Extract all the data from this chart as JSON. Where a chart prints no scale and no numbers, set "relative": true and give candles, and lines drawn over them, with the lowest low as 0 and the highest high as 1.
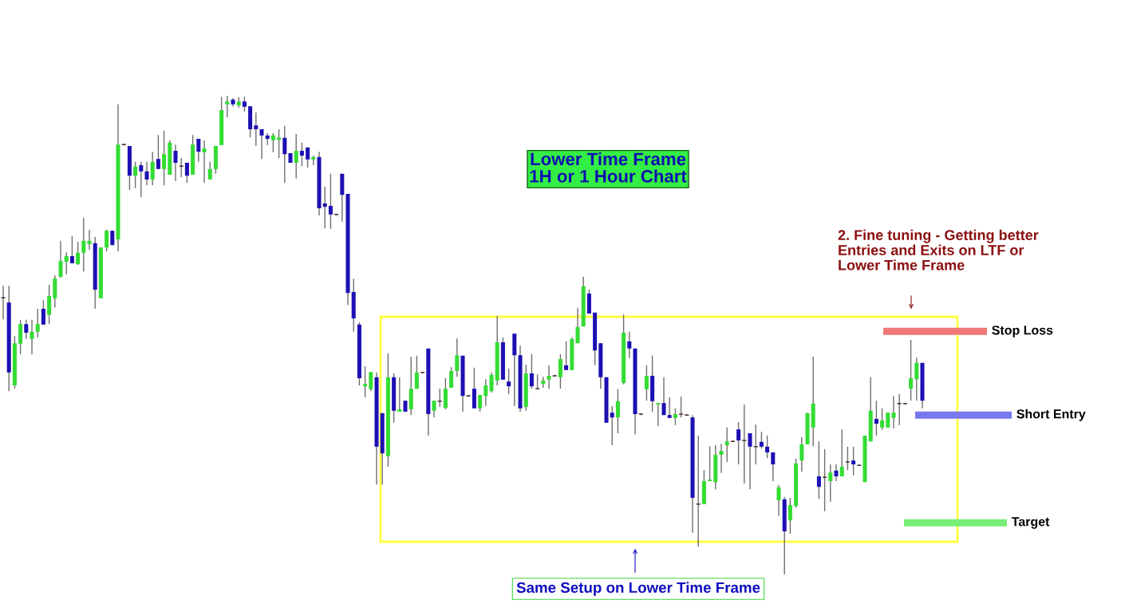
{
  "chart_data": {
    "type": "candlestick",
    "title": "Lower Time Frame\n1H or 1 Hour Chart",
    "relative": true,
    "categories": [
      null,
      null,
      null,
      null,
      null,
      null,
      null,
      null,
      null,
      null,
      null,
      null,
      null,
      null,
      null,
      null,
      null,
      null,
      null,
      null,
      null,
      null,
      null,
      null,
      null,
      null,
      null,
      null,
      null,
      null,
      null,
      null,
      null,
      null,
      null,
      null,
      null,
      null,
      null,
      null,
      null,
      null,
      null,
      null,
      null,
      null,
      null,
      null,
      null,
      null,
      null,
      null,
      null,
      null,
      null,
      null,
      null,
      null,
      null,
      null,
      null,
      null,
      null,
      null,
      null,
      null,
      null,
      null,
      null,
      null,
      null,
      null,
      null,
      null,
      null,
      null,
      null,
      null,
      null,
      null,
      null,
      null,
      null,
      null,
      null,
      null,
      null,
      null,
      null,
      null,
      null,
      null,
      null,
      null,
      null,
      null,
      null,
      null,
      null,
      null,
      null,
      null,
      null,
      null,
      null,
      null,
      null,
      null,
      null,
      null,
      null,
      null,
      null,
      null,
      null,
      null,
      null,
      null,
      null,
      null,
      null,
      null,
      null,
      null,
      null,
      null,
      null,
      null,
      null,
      null,
      null,
      null,
      null,
      null,
      null,
      null,
      null,
      null,
      null,
      null,
      null,
      null,
      null,
      null,
      null,
      null,
      null,
      null,
      null,
      null,
      null,
      null,
      null,
      null,
      null,
      null,
      null,
      null,
      null,
      null,
      null
    ],
    "ohlc": [
      [
        0.578,
        0.603,
        0.533,
        0.578
      ],
      [
        0.568,
        0.603,
        0.383,
        0.422
      ],
      [
        0.395,
        0.498,
        0.388,
        0.483
      ],
      [
        0.482,
        0.532,
        0.46,
        0.523
      ],
      [
        0.523,
        0.532,
        0.492,
        0.505
      ],
      [
        0.492,
        0.532,
        0.46,
        0.507
      ],
      [
        0.507,
        0.555,
        0.495,
        0.523
      ],
      [
        0.555,
        0.573,
        0.522,
        0.522
      ],
      [
        0.542,
        0.605,
        0.523,
        0.582
      ],
      [
        0.577,
        0.625,
        0.558,
        0.618
      ],
      [
        0.622,
        0.697,
        0.62,
        0.655
      ],
      [
        0.653,
        0.673,
        0.627,
        0.665
      ],
      [
        0.665,
        0.707,
        0.65,
        0.65
      ],
      [
        0.648,
        0.695,
        0.647,
        0.672
      ],
      [
        0.672,
        0.745,
        0.633,
        0.697
      ],
      [
        0.69,
        0.72,
        0.678,
        0.697
      ],
      [
        0.692,
        0.705,
        0.555,
        0.595
      ],
      [
        0.577,
        0.683,
        0.577,
        0.683
      ],
      [
        0.683,
        0.72,
        0.675,
        0.718
      ],
      [
        0.718,
        0.718,
        0.688,
        0.688
      ],
      [
        0.7,
        0.982,
        0.675,
        0.898
      ],
      [
        0.898,
        0.9,
        0.897,
        0.898
      ],
      [
        0.895,
        0.895,
        0.803,
        0.833
      ],
      [
        0.833,
        0.862,
        0.807,
        0.852
      ],
      [
        0.855,
        0.862,
        0.788,
        0.842
      ],
      [
        0.842,
        0.862,
        0.813,
        0.825
      ],
      [
        0.825,
        0.883,
        0.813,
        0.862
      ],
      [
        0.868,
        0.918,
        0.847,
        0.847
      ],
      [
        0.847,
        0.927,
        0.813,
        0.878
      ],
      [
        0.835,
        0.907,
        0.835,
        0.902
      ],
      [
        0.885,
        0.898,
        0.822,
        0.86
      ],
      [
        0.853,
        0.87,
        0.83,
        0.853
      ],
      [
        0.86,
        0.86,
        0.818,
        0.833
      ],
      [
        0.835,
        0.918,
        0.835,
        0.898
      ],
      [
        0.91,
        0.91,
        0.862,
        0.883
      ],
      [
        0.882,
        0.907,
        0.818,
        0.89
      ],
      [
        0.825,
        0.862,
        0.825,
        0.847
      ],
      [
        0.847,
        0.895,
        0.837,
        0.895
      ],
      [
        0.897,
        0.998,
        0.897,
        0.97
      ],
      [
        0.982,
        1.0,
        0.955,
        0.988
      ],
      [
        0.992,
        0.995,
        0.977,
        0.982
      ],
      [
        0.98,
        0.997,
        0.975,
        0.988
      ],
      [
        0.988,
        0.998,
        0.967,
        0.977
      ],
      [
        0.978,
        0.978,
        0.913,
        0.93
      ],
      [
        0.938,
        0.965,
        0.895,
        0.93
      ],
      [
        0.93,
        0.93,
        0.868,
        0.917
      ],
      [
        0.917,
        0.922,
        0.897,
        0.91
      ],
      [
        0.907,
        0.922,
        0.882,
        0.917
      ],
      [
        0.908,
        0.93,
        0.87,
        0.913
      ],
      [
        0.912,
        0.937,
        0.818,
        0.878
      ],
      [
        0.88,
        0.88,
        0.86,
        0.86
      ],
      [
        0.86,
        0.92,
        0.827,
        0.885
      ],
      [
        0.885,
        0.902,
        0.853,
        0.875
      ],
      [
        0.892,
        0.892,
        0.85,
        0.867
      ],
      [
        0.867,
        0.875,
        0.855,
        0.872
      ],
      [
        0.872,
        0.883,
        0.75,
        0.765
      ],
      [
        0.775,
        0.81,
        0.723,
        0.768
      ],
      [
        0.77,
        0.837,
        0.722,
        0.752
      ],
      [
        0.752,
        0.753,
        0.75,
        0.752
      ],
      [
        0.837,
        0.837,
        0.737,
        0.793
      ],
      [
        0.795,
        0.795,
        0.563,
        0.588
      ],
      [
        0.59,
        0.618,
        0.507,
        0.535
      ],
      [
        0.522,
        0.527,
        0.395,
        0.41
      ],
      [
        0.393,
        0.435,
        0.37,
        0.398
      ],
      [
        0.387,
        0.423,
        0.383,
        0.423
      ],
      [
        0.412,
        0.422,
        0.188,
        0.267
      ],
      [
        0.337,
        0.337,
        0.188,
        0.253
      ],
      [
        0.247,
        0.462,
        0.225,
        0.412
      ],
      [
        0.412,
        0.42,
        0.317,
        0.342
      ],
      [
        0.34,
        0.412,
        0.34,
        0.345
      ],
      [
        0.363,
        0.363,
        0.34,
        0.34
      ],
      [
        0.345,
        0.455,
        0.333,
        0.388
      ],
      [
        0.388,
        0.457,
        0.388,
        0.422
      ],
      [
        0.422,
        0.423,
        0.42,
        0.422
      ],
      [
        0.472,
        0.472,
        0.29,
        0.335
      ],
      [
        0.342,
        0.363,
        0.328,
        0.363
      ],
      [
        0.362,
        0.388,
        0.35,
        0.362
      ],
      [
        0.348,
        0.41,
        0.345,
        0.388
      ],
      [
        0.39,
        0.433,
        0.39,
        0.425
      ],
      [
        0.425,
        0.493,
        0.413,
        0.458
      ],
      [
        0.457,
        0.457,
        0.34,
        0.373
      ],
      [
        0.373,
        0.375,
        0.372,
        0.373
      ],
      [
        0.388,
        0.432,
        0.347,
        0.347
      ],
      [
        0.347,
        0.375,
        0.34,
        0.375
      ],
      [
        0.373,
        0.408,
        0.352,
        0.395
      ],
      [
        0.383,
        0.422,
        0.38,
        0.417
      ],
      [
        0.405,
        0.54,
        0.395,
        0.485
      ],
      [
        0.485,
        0.495,
        0.407,
        0.407
      ],
      [
        0.403,
        0.43,
        0.377,
        0.393
      ],
      [
        0.503,
        0.503,
        0.352,
        0.458
      ],
      [
        0.458,
        0.478,
        0.34,
        0.347
      ],
      [
        0.35,
        0.438,
        0.342,
        0.42
      ],
      [
        0.42,
        0.46,
        0.388,
        0.393
      ],
      [
        0.388,
        0.418,
        0.387,
        0.388
      ],
      [
        0.398,
        0.413,
        0.39,
        0.405
      ],
      [
        0.407,
        0.437,
        0.388,
        0.415
      ],
      [
        0.415,
        0.417,
        0.413,
        0.415
      ],
      [
        0.412,
        0.46,
        0.388,
        0.45
      ],
      [
        0.437,
        0.487,
        0.427,
        0.427
      ],
      [
        0.427,
        0.495,
        0.427,
        0.492
      ],
      [
        0.483,
        0.557,
        0.483,
        0.517
      ],
      [
        0.518,
        0.622,
        0.518,
        0.602
      ],
      [
        0.587,
        0.595,
        0.545,
        0.545
      ],
      [
        0.547,
        0.547,
        0.437,
        0.468
      ],
      [
        0.483,
        0.483,
        0.388,
        0.412
      ],
      [
        0.412,
        0.412,
        0.317,
        0.317
      ],
      [
        0.338,
        0.352,
        0.27,
        0.328
      ],
      [
        0.328,
        0.387,
        0.295,
        0.362
      ],
      [
        0.4,
        0.543,
        0.397,
        0.505
      ],
      [
        0.487,
        0.507,
        0.452,
        0.472
      ],
      [
        0.472,
        0.472,
        0.293,
        0.335
      ],
      [
        0.335,
        0.337,
        0.333,
        0.335
      ],
      [
        0.387,
        0.437,
        0.363,
        0.415
      ],
      [
        0.415,
        0.457,
        0.34,
        0.362
      ],
      [
        0.355,
        0.358,
        0.31,
        0.358
      ],
      [
        0.358,
        0.412,
        0.333,
        0.333
      ],
      [
        0.333,
        0.37,
        0.327,
        0.327
      ],
      [
        0.327,
        0.347,
        0.312,
        0.335
      ],
      [
        0.335,
        0.372,
        0.328,
        0.335
      ],
      [
        0.333,
        0.335,
        0.332,
        0.333
      ],
      [
        0.328,
        0.333,
        0.087,
        0.16
      ],
      [
        0.147,
        0.29,
        0.058,
        0.147
      ],
      [
        0.147,
        0.218,
        0.147,
        0.195
      ],
      [
        0.195,
        0.268,
        0.195,
        0.198
      ],
      [
        0.193,
        0.27,
        0.178,
        0.25
      ],
      [
        0.25,
        0.273,
        0.212,
        0.258
      ],
      [
        0.27,
        0.307,
        0.235,
        0.278
      ],
      [
        0.278,
        0.28,
        0.277,
        0.278
      ],
      [
        0.303,
        0.318,
        0.23,
        0.28
      ],
      [
        0.28,
        0.355,
        0.19,
        0.28
      ],
      [
        0.295,
        0.295,
        0.178,
        0.267
      ],
      [
        0.267,
        0.313,
        0.23,
        0.267
      ],
      [
        0.277,
        0.298,
        0.263,
        0.267
      ],
      [
        0.267,
        0.29,
        0.243,
        0.255
      ],
      [
        0.255,
        0.255,
        0.195,
        0.23
      ],
      [
        0.155,
        0.187,
        0.122,
        0.182
      ],
      [
        0.157,
        0.162,
        0.0,
        0.09
      ],
      [
        0.113,
        0.16,
        0.085,
        0.145
      ],
      [
        0.143,
        0.242,
        0.14,
        0.232
      ],
      [
        0.238,
        0.287,
        0.215,
        0.272
      ],
      [
        0.272,
        0.338,
        0.272,
        0.337
      ],
      [
        0.307,
        0.455,
        0.268,
        0.357
      ],
      [
        0.205,
        0.278,
        0.158,
        0.183
      ],
      [
        0.203,
        0.262,
        0.132,
        0.203
      ],
      [
        0.195,
        0.23,
        0.152,
        0.213
      ],
      [
        0.217,
        0.23,
        0.195,
        0.205
      ],
      [
        0.205,
        0.303,
        0.205,
        0.225
      ],
      [
        0.235,
        0.267,
        0.218,
        0.235
      ],
      [
        0.238,
        0.267,
        0.207,
        0.23
      ],
      [
        0.228,
        0.23,
        0.227,
        0.228
      ],
      [
        0.193,
        0.29,
        0.193,
        0.29
      ],
      [
        0.278,
        0.412,
        0.278,
        0.342
      ],
      [
        0.325,
        0.363,
        0.29,
        0.315
      ],
      [
        0.307,
        0.347,
        0.302,
        0.322
      ],
      [
        0.307,
        0.338,
        0.307,
        0.338
      ],
      [
        0.327,
        0.373,
        0.305,
        0.338
      ],
      [
        0.357,
        0.377,
        0.312,
        0.357
      ],
      [
        0.357,
        0.358,
        0.355,
        0.357
      ],
      [
        0.388,
        0.49,
        0.363,
        0.41
      ],
      [
        0.408,
        0.453,
        0.363,
        0.442
      ],
      [
        0.442,
        0.442,
        0.347,
        0.363
      ]
    ],
    "colors": [
      "#4a3030",
      "#1c10b4",
      "#33dd33",
      "#33dd33",
      "#1c10b4",
      "#33dd33",
      "#33dd33",
      "#1c10b4",
      "#33dd33",
      "#33dd33",
      "#33dd33",
      "#33dd33",
      "#1c10b4",
      "#33dd33",
      "#33dd33",
      "#33dd33",
      "#1c10b4",
      "#33dd33",
      "#33dd33",
      "#1c10b4",
      "#33dd33",
      "#4a3030",
      "#1c10b4",
      "#33dd33",
      "#1c10b4",
      "#1c10b4",
      "#33dd33",
      "#1c10b4",
      "#33dd33",
      "#33dd33",
      "#1c10b4",
      "#4a3030",
      "#1c10b4",
      "#33dd33",
      "#1c10b4",
      "#33dd33",
      "#33dd33",
      "#33dd33",
      "#33dd33",
      "#33dd33",
      "#1c10b4",
      "#33dd33",
      "#1c10b4",
      "#1c10b4",
      "#1c10b4",
      "#1c10b4",
      "#1c10b4",
      "#33dd33",
      "#33dd33",
      "#1c10b4",
      "#1c10b4",
      "#33dd33",
      "#1c10b4",
      "#1c10b4",
      "#33dd33",
      "#1c10b4",
      "#1c10b4",
      "#1c10b4",
      "#4a3030",
      "#1c10b4",
      "#1c10b4",
      "#1c10b4",
      "#1c10b4",
      "#33dd33",
      "#33dd33",
      "#1c10b4",
      "#1c10b4",
      "#33dd33",
      "#1c10b4",
      "#33dd33",
      "#1c10b4",
      "#33dd33",
      "#33dd33",
      "#4a3030",
      "#1c10b4",
      "#33dd33",
      "#4a3030",
      "#33dd33",
      "#33dd33",
      "#33dd33",
      "#1c10b4",
      "#4a3030",
      "#1c10b4",
      "#33dd33",
      "#33dd33",
      "#33dd33",
      "#33dd33",
      "#1c10b4",
      "#1c10b4",
      "#1c10b4",
      "#1c10b4",
      "#33dd33",
      "#1c10b4",
      "#4a3030",
      "#33dd33",
      "#33dd33",
      "#4a3030",
      "#33dd33",
      "#1c10b4",
      "#33dd33",
      "#33dd33",
      "#33dd33",
      "#1c10b4",
      "#1c10b4",
      "#1c10b4",
      "#1c10b4",
      "#1c10b4",
      "#33dd33",
      "#33dd33",
      "#1c10b4",
      "#1c10b4",
      "#4a3030",
      "#33dd33",
      "#1c10b4",
      "#33dd33",
      "#1c10b4",
      "#1c10b4",
      "#33dd33",
      "#4a3030",
      "#4a3030",
      "#1c10b4",
      "#4a3030",
      "#33dd33",
      "#33dd33",
      "#33dd33",
      "#33dd33",
      "#33dd33",
      "#4a3030",
      "#1c10b4",
      "#4a3030",
      "#1c10b4",
      "#4a3030",
      "#1c10b4",
      "#1c10b4",
      "#1c10b4",
      "#33dd33",
      "#1c10b4",
      "#33dd33",
      "#33dd33",
      "#33dd33",
      "#33dd33",
      "#33dd33",
      "#1c10b4",
      "#4a3030",
      "#33dd33",
      "#1c10b4",
      "#33dd33",
      "#4a3030",
      "#1c10b4",
      "#4a3030",
      "#33dd33",
      "#33dd33",
      "#1c10b4",
      "#33dd33",
      "#33dd33",
      "#33dd33",
      "#4a3030",
      "#4a3030",
      "#33dd33",
      "#33dd33",
      "#1c10b4"
    ],
    "ref_lines": [
      {
        "axis": "y",
        "value": 0.508,
        "label": "Stop Loss",
        "color": "#f07878"
      },
      {
        "axis": "y",
        "value": 0.333,
        "label": "Short Entry",
        "color": "#7878f0"
      },
      {
        "axis": "y",
        "value": 0.108,
        "label": "Target",
        "color": "#78ee78"
      }
    ],
    "annotations": [
      "2. Fine tuning - Getting better\nEntries and Exits on LTF or\nLower Time Frame",
      "Same Setup on Lower Time Frame"
    ]
  }
}
